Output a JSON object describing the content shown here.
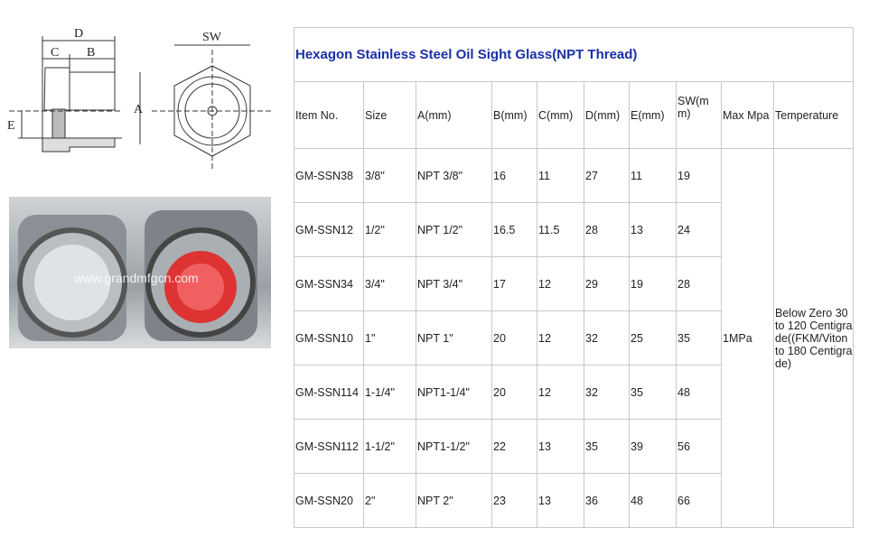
{
  "drawing": {
    "labels": {
      "d": "D",
      "c": "C",
      "b": "B",
      "e": "E",
      "a": "A",
      "sw": "SW"
    }
  },
  "photo": {
    "watermark": "www.grandmfgcn.com"
  },
  "table": {
    "title": "Hexagon Stainless Steel Oil Sight Glass(NPT Thread)",
    "headers": [
      "Item No.",
      "Size",
      "A(mm)",
      "B(mm)",
      "C(mm)",
      "D(mm)",
      "E(mm)",
      "SW(mm)",
      "Max Mpa",
      "Temperature"
    ],
    "rows": [
      [
        "GM-SSN38",
        "3/8\"",
        "NPT 3/8\"",
        "16",
        "11",
        "27",
        "11",
        "19"
      ],
      [
        "GM-SSN12",
        "1/2\"",
        "NPT 1/2\"",
        "16.5",
        "11.5",
        "28",
        "13",
        "24"
      ],
      [
        "GM-SSN34",
        "3/4\"",
        "NPT 3/4\"",
        "17",
        "12",
        "29",
        "19",
        "28"
      ],
      [
        "GM-SSN10",
        "1\"",
        "NPT 1\"",
        "20",
        "12",
        "32",
        "25",
        "35"
      ],
      [
        "GM-SSN114",
        "1-1/4\"",
        "NPT1-1/4\"",
        "20",
        "12",
        "32",
        "35",
        "48"
      ],
      [
        "GM-SSN112",
        "1-1/2\"",
        "NPT1-1/2\"",
        "22",
        "13",
        "35",
        "39",
        "56"
      ],
      [
        "GM-SSN20",
        "2\"",
        "NPT 2\"",
        "23",
        "13",
        "36",
        "48",
        "66"
      ]
    ],
    "max_mpa": "1MPa",
    "temperature": "Below Zero 30 to 120 Centigrade((FKM/Viton to 180 Centigrade)"
  }
}
